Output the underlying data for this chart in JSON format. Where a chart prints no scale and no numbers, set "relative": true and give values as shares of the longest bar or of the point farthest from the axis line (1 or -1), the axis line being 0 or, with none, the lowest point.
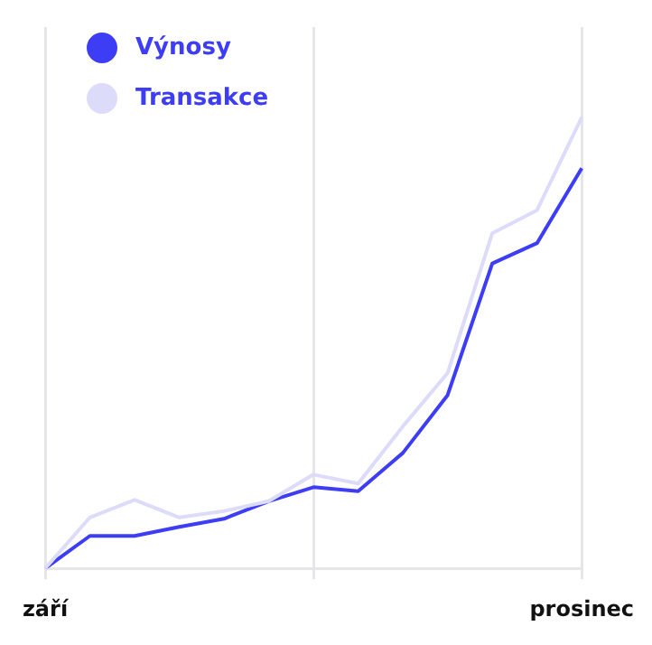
{
  "chart_data": {
    "type": "line",
    "relative": true,
    "grid": "x",
    "legend": "top left",
    "marker": "none",
    "line_style": "solid",
    "categories": [
      "září",
      null,
      null,
      null,
      null,
      null,
      null,
      null,
      null,
      null,
      null,
      null,
      "prosinec"
    ],
    "series": [
      {
        "name": "Výnosy",
        "color": "#3d3df5",
        "values": [
          0,
          0.072,
          0.072,
          0.092,
          0.11,
          0.149,
          0.18,
          0.171,
          0.256,
          0.384,
          0.676,
          0.721,
          0.887
        ]
      },
      {
        "name": "Transakce",
        "color": "#dcdcfa",
        "values": [
          0,
          0.113,
          0.152,
          0.113,
          0.127,
          0.149,
          0.208,
          0.188,
          0.315,
          0.433,
          0.743,
          0.794,
          1
        ]
      }
    ]
  }
}
